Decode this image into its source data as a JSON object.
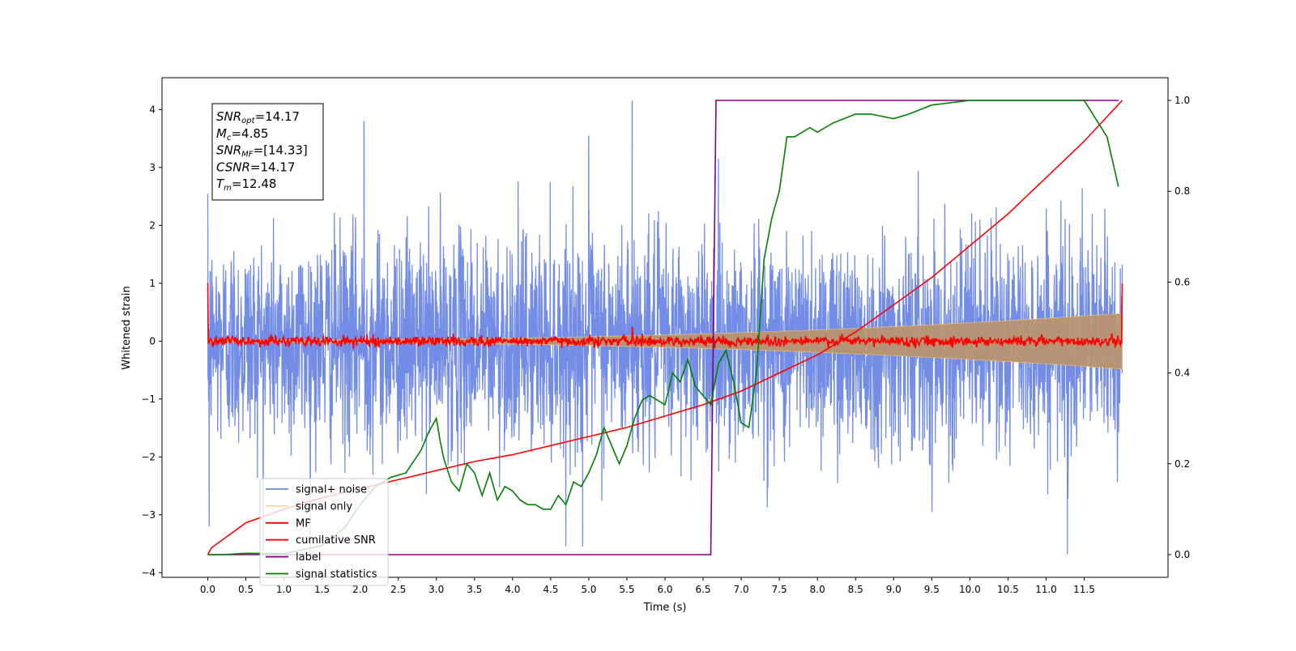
{
  "chart_data": {
    "type": "line",
    "xlabel": "Time (s)",
    "ylabel_left": "Whitened strain",
    "ylabel_right": "",
    "xlim": [
      -0.6,
      12.6
    ],
    "ylim_left": [
      -4.08,
      4.55
    ],
    "ylim_right": [
      -0.05,
      1.05
    ],
    "x_ticks": [
      0.0,
      0.5,
      1.0,
      1.5,
      2.0,
      2.5,
      3.0,
      3.5,
      4.0,
      4.5,
      5.0,
      5.5,
      6.0,
      6.5,
      7.0,
      7.5,
      8.0,
      8.5,
      9.0,
      9.5,
      10.0,
      10.5,
      11.0,
      11.5
    ],
    "x_tick_labels": [
      "0.0",
      "0.5",
      "1.0",
      "1.5",
      "2.0",
      "2.5",
      "3.0",
      "3.5",
      "4.0",
      "4.5",
      "5.0",
      "5.5",
      "6.0",
      "6.5",
      "7.0",
      "7.5",
      "8.0",
      "8.5",
      "9.0",
      "9.5",
      "10.0",
      "10.5",
      "11.0",
      "11.5"
    ],
    "y_left_ticks": [
      -4,
      -3,
      -2,
      -1,
      0,
      1,
      2,
      3,
      4
    ],
    "y_left_tick_labels": [
      "−4",
      "−3",
      "−2",
      "−1",
      "0",
      "1",
      "2",
      "3",
      "4"
    ],
    "y_right_ticks": [
      0.0,
      0.2,
      0.4,
      0.6,
      0.8,
      1.0
    ],
    "y_right_tick_labels": [
      "0.0",
      "0.2",
      "0.4",
      "0.6",
      "0.8",
      "1.0"
    ],
    "grid": false,
    "legend_position": "lower-left",
    "legend": [
      {
        "label": "signal+ noise",
        "color": "#6b87e6"
      },
      {
        "label": "signal only",
        "color": "#ffc966"
      },
      {
        "label": "MF",
        "color": "#ff0000"
      },
      {
        "label": "cumilative SNR",
        "color": "#ff0000"
      },
      {
        "label": "label",
        "color": "#800080"
      },
      {
        "label": "signal statistics",
        "color": "#008000"
      }
    ],
    "annotation": {
      "lines": [
        {
          "sym": "SNR",
          "sub": "opt",
          "rest": "=14.17"
        },
        {
          "sym": "M",
          "sub": "c",
          "rest": "=4.85"
        },
        {
          "sym": "SNR",
          "sub": "MF",
          "rest": "=[14.33]"
        },
        {
          "sym": "CSNR",
          "sub": "",
          "rest": "=14.17"
        },
        {
          "sym": "T",
          "sub": "m",
          "rest": "=12.48"
        }
      ]
    },
    "series": [
      {
        "name": "signal+ noise",
        "axis": "left",
        "style": "noise",
        "x_range": [
          0.0,
          12.0
        ],
        "envelope_p95": 1.8,
        "extremes": [
          [
            5.57,
            4.15
          ],
          [
            4.92,
            -3.55
          ],
          [
            11.28,
            -3.68
          ],
          [
            0.02,
            -3.2
          ],
          [
            2.05,
            3.8
          ],
          [
            5.0,
            3.55
          ]
        ]
      },
      {
        "name": "signal only",
        "axis": "left",
        "style": "chirp",
        "x_range": [
          0.0,
          12.0
        ],
        "amplitude_start": 0.02,
        "amplitude_end": 0.48
      },
      {
        "name": "MF",
        "axis": "left",
        "style": "mf",
        "x_range": [
          0.0,
          12.0
        ],
        "endpoints": [
          [
            0.0,
            1.0
          ],
          [
            12.0,
            1.0
          ]
        ],
        "peak": [
          5.57,
          0.25
        ]
      },
      {
        "name": "cumilative SNR",
        "axis": "right",
        "x": [
          0.0,
          0.05,
          0.5,
          1.0,
          1.5,
          2.0,
          2.5,
          3.0,
          3.5,
          4.0,
          4.5,
          5.0,
          5.5,
          6.0,
          6.5,
          7.0,
          7.5,
          8.0,
          8.5,
          9.0,
          9.5,
          10.0,
          10.5,
          11.0,
          11.5,
          12.0
        ],
        "y": [
          0.0,
          0.015,
          0.07,
          0.1,
          0.125,
          0.145,
          0.165,
          0.185,
          0.205,
          0.22,
          0.24,
          0.26,
          0.28,
          0.305,
          0.33,
          0.36,
          0.4,
          0.44,
          0.49,
          0.55,
          0.61,
          0.68,
          0.75,
          0.83,
          0.91,
          1.0
        ]
      },
      {
        "name": "label",
        "axis": "right",
        "x": [
          0.0,
          6.6,
          6.67,
          11.95
        ],
        "y": [
          0.0,
          0.0,
          1.0,
          1.0
        ]
      },
      {
        "name": "signal statistics",
        "axis": "right",
        "x": [
          0.0,
          0.2,
          0.5,
          1.0,
          1.5,
          1.8,
          2.0,
          2.2,
          2.4,
          2.6,
          2.8,
          2.9,
          3.0,
          3.05,
          3.1,
          3.2,
          3.3,
          3.4,
          3.5,
          3.6,
          3.7,
          3.8,
          3.9,
          4.0,
          4.1,
          4.2,
          4.3,
          4.4,
          4.5,
          4.6,
          4.7,
          4.8,
          4.9,
          5.0,
          5.1,
          5.2,
          5.3,
          5.4,
          5.5,
          5.6,
          5.7,
          5.8,
          5.9,
          6.0,
          6.1,
          6.2,
          6.3,
          6.4,
          6.5,
          6.6,
          6.7,
          6.8,
          6.9,
          7.0,
          7.1,
          7.2,
          7.3,
          7.4,
          7.5,
          7.6,
          7.7,
          7.8,
          7.9,
          8.0,
          8.2,
          8.5,
          8.7,
          9.0,
          9.2,
          9.5,
          10.0,
          10.5,
          11.0,
          11.5,
          11.8,
          11.95
        ],
        "y": [
          0.0,
          0.0,
          0.003,
          0.002,
          0.02,
          0.06,
          0.11,
          0.15,
          0.17,
          0.18,
          0.23,
          0.27,
          0.3,
          0.25,
          0.21,
          0.16,
          0.14,
          0.2,
          0.18,
          0.13,
          0.18,
          0.12,
          0.15,
          0.14,
          0.12,
          0.11,
          0.11,
          0.1,
          0.1,
          0.13,
          0.11,
          0.16,
          0.15,
          0.18,
          0.22,
          0.28,
          0.24,
          0.2,
          0.24,
          0.3,
          0.34,
          0.35,
          0.34,
          0.33,
          0.4,
          0.38,
          0.43,
          0.37,
          0.35,
          0.33,
          0.42,
          0.45,
          0.38,
          0.29,
          0.28,
          0.4,
          0.65,
          0.74,
          0.8,
          0.92,
          0.92,
          0.93,
          0.94,
          0.93,
          0.95,
          0.97,
          0.97,
          0.96,
          0.97,
          0.99,
          1.0,
          1.0,
          1.0,
          1.0,
          0.92,
          0.81
        ]
      }
    ]
  }
}
